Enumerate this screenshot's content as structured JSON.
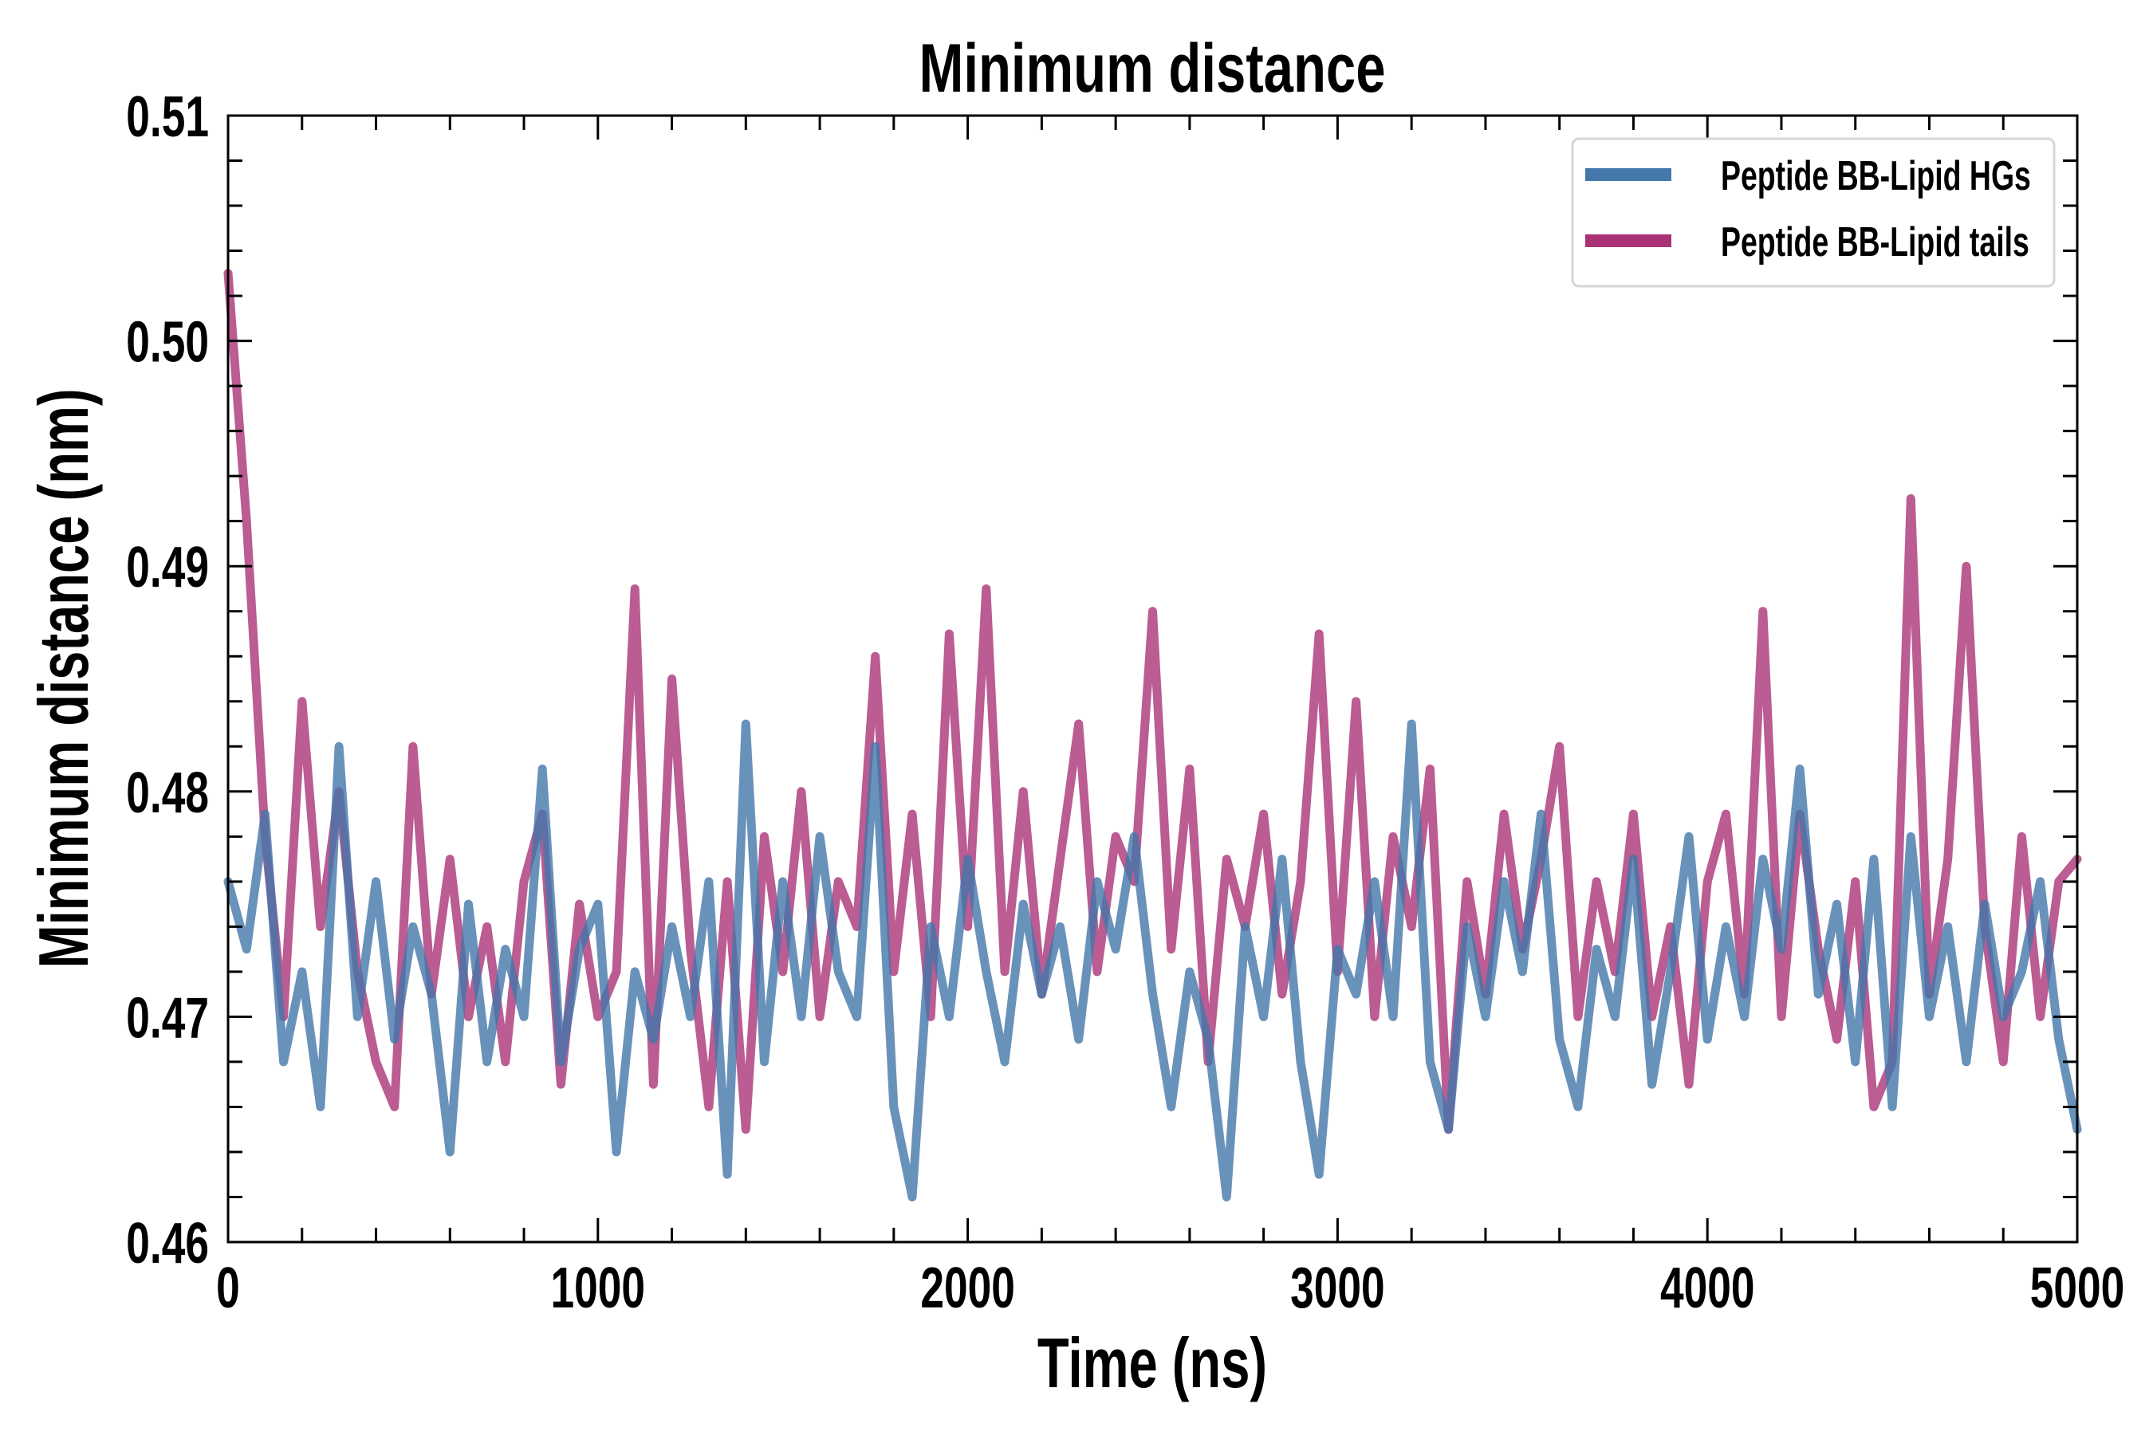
{
  "chart_data": {
    "type": "line",
    "title": "Minimum distance",
    "xlabel": "Time (ns)",
    "ylabel": "Minimum distance (nm)",
    "xlim": [
      0,
      5000
    ],
    "ylim": [
      0.46,
      0.51
    ],
    "xticks": [
      "0",
      "1000",
      "2000",
      "3000",
      "4000",
      "5000"
    ],
    "yticks": [
      "0.46",
      "0.47",
      "0.48",
      "0.49",
      "0.50",
      "0.51"
    ],
    "grid": false,
    "legend_position": "top-right",
    "x": [
      0,
      50,
      100,
      150,
      200,
      250,
      300,
      350,
      400,
      450,
      500,
      550,
      600,
      650,
      700,
      750,
      800,
      850,
      900,
      950,
      1000,
      1050,
      1100,
      1150,
      1200,
      1250,
      1300,
      1350,
      1400,
      1450,
      1500,
      1550,
      1600,
      1650,
      1700,
      1750,
      1800,
      1850,
      1900,
      1950,
      2000,
      2050,
      2100,
      2150,
      2200,
      2250,
      2300,
      2350,
      2400,
      2450,
      2500,
      2550,
      2600,
      2650,
      2700,
      2750,
      2800,
      2850,
      2900,
      2950,
      3000,
      3050,
      3100,
      3150,
      3200,
      3250,
      3300,
      3350,
      3400,
      3450,
      3500,
      3550,
      3600,
      3650,
      3700,
      3750,
      3800,
      3850,
      3900,
      3950,
      4000,
      4050,
      4100,
      4150,
      4200,
      4250,
      4300,
      4350,
      4400,
      4450,
      4500,
      4550,
      4600,
      4650,
      4700,
      4750,
      4800,
      4850,
      4900,
      4950,
      5000
    ],
    "series": [
      {
        "name": "Peptide BB-Lipid tails",
        "color": "#aa3377",
        "values": [
          0.503,
          0.492,
          0.478,
          0.47,
          0.484,
          0.474,
          0.48,
          0.472,
          0.468,
          0.466,
          0.482,
          0.471,
          0.477,
          0.47,
          0.474,
          0.468,
          0.476,
          0.479,
          0.467,
          0.475,
          0.47,
          0.472,
          0.489,
          0.467,
          0.485,
          0.473,
          0.466,
          0.476,
          0.465,
          0.478,
          0.472,
          0.48,
          0.47,
          0.476,
          0.474,
          0.486,
          0.472,
          0.479,
          0.47,
          0.487,
          0.474,
          0.489,
          0.472,
          0.48,
          0.471,
          0.477,
          0.483,
          0.472,
          0.478,
          0.476,
          0.488,
          0.473,
          0.481,
          0.468,
          0.477,
          0.474,
          0.479,
          0.471,
          0.476,
          0.487,
          0.472,
          0.484,
          0.47,
          0.478,
          0.474,
          0.481,
          0.465,
          0.476,
          0.471,
          0.479,
          0.473,
          0.477,
          0.482,
          0.47,
          0.476,
          0.472,
          0.479,
          0.47,
          0.474,
          0.467,
          0.476,
          0.479,
          0.471,
          0.488,
          0.47,
          0.479,
          0.473,
          0.469,
          0.476,
          0.466,
          0.468,
          0.493,
          0.471,
          0.477,
          0.49,
          0.474,
          0.468,
          0.478,
          0.47,
          0.476,
          0.477
        ]
      },
      {
        "name": "Peptide BB-Lipid HGs",
        "color": "#4477aa",
        "values": [
          0.476,
          0.473,
          0.479,
          0.468,
          0.472,
          0.466,
          0.482,
          0.47,
          0.476,
          0.469,
          0.474,
          0.471,
          0.464,
          0.475,
          0.468,
          0.473,
          0.47,
          0.481,
          0.468,
          0.473,
          0.475,
          0.464,
          0.472,
          0.469,
          0.474,
          0.47,
          0.476,
          0.463,
          0.483,
          0.468,
          0.476,
          0.47,
          0.478,
          0.472,
          0.47,
          0.482,
          0.466,
          0.462,
          0.474,
          0.47,
          0.477,
          0.472,
          0.468,
          0.475,
          0.471,
          0.474,
          0.469,
          0.476,
          0.473,
          0.478,
          0.471,
          0.466,
          0.472,
          0.469,
          0.462,
          0.474,
          0.47,
          0.477,
          0.468,
          0.463,
          0.473,
          0.471,
          0.476,
          0.47,
          0.483,
          0.468,
          0.465,
          0.474,
          0.47,
          0.476,
          0.472,
          0.479,
          0.469,
          0.466,
          0.473,
          0.47,
          0.477,
          0.467,
          0.472,
          0.478,
          0.469,
          0.474,
          0.47,
          0.477,
          0.473,
          0.481,
          0.471,
          0.475,
          0.468,
          0.477,
          0.466,
          0.478,
          0.47,
          0.474,
          0.468,
          0.475,
          0.47,
          0.472,
          0.476,
          0.469,
          0.465
        ]
      }
    ]
  }
}
